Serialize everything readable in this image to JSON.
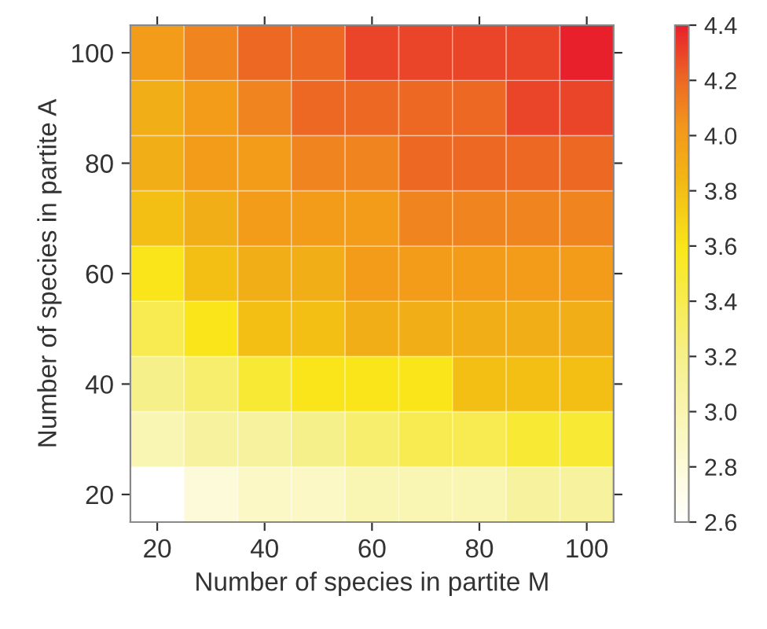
{
  "chart_data": {
    "type": "heatmap",
    "xlabel": "Number of species in partite M",
    "ylabel": "Number of species in partite A",
    "categories": [
      "20",
      null,
      "40",
      null,
      "60",
      null,
      "80",
      null,
      "100"
    ],
    "y_categories": [
      "100",
      null,
      "80",
      null,
      "60",
      null,
      "40",
      null,
      "20"
    ],
    "cells": [
      [
        4.0,
        4.1,
        4.2,
        4.2,
        4.3,
        4.3,
        4.3,
        4.3,
        4.4
      ],
      [
        3.9,
        4.0,
        4.1,
        4.2,
        4.2,
        4.2,
        4.2,
        4.3,
        4.3
      ],
      [
        3.9,
        4.0,
        4.0,
        4.1,
        4.1,
        4.2,
        4.2,
        4.2,
        4.2
      ],
      [
        3.8,
        3.9,
        4.0,
        4.0,
        4.0,
        4.1,
        4.1,
        4.1,
        4.1
      ],
      [
        3.6,
        3.8,
        3.9,
        3.9,
        4.0,
        4.0,
        4.0,
        4.0,
        4.0
      ],
      [
        3.4,
        3.6,
        3.8,
        3.8,
        3.9,
        3.9,
        3.9,
        3.9,
        3.9
      ],
      [
        3.2,
        3.3,
        3.5,
        3.6,
        3.6,
        3.6,
        3.8,
        3.8,
        3.8
      ],
      [
        3.0,
        3.1,
        3.1,
        3.2,
        3.3,
        3.4,
        3.4,
        3.5,
        3.5
      ],
      [
        2.6,
        2.8,
        2.9,
        2.9,
        3.0,
        3.0,
        3.0,
        3.1,
        3.1
      ]
    ],
    "clim": [
      2.6,
      4.4
    ],
    "cticks": [
      {
        "value": 2.6,
        "label": "2.6"
      },
      {
        "value": 2.8,
        "label": "2.8"
      },
      {
        "value": 3.0,
        "label": "3.0"
      },
      {
        "value": 3.2,
        "label": "3.2"
      },
      {
        "value": 3.4,
        "label": "3.4"
      },
      {
        "value": 3.6,
        "label": "3.6"
      },
      {
        "value": 3.8,
        "label": "3.8"
      },
      {
        "value": 4.0,
        "label": "4.0"
      },
      {
        "value": 4.2,
        "label": "4.2"
      },
      {
        "value": 4.4,
        "label": "4.4"
      }
    ]
  }
}
